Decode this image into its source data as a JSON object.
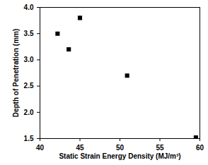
{
  "chart_data": {
    "type": "scatter",
    "x_label": "Static Strain Energy Density (MJ/m³)",
    "y_label": "Depth of Penetration (mm)",
    "x": [
      42.2,
      43.6,
      45.0,
      50.9,
      59.5
    ],
    "values": [
      3.5,
      3.2,
      3.8,
      2.7,
      1.52
    ],
    "color": "#000000",
    "marker": "square",
    "xlim": [
      40,
      60
    ],
    "xticks": [
      40,
      45,
      50,
      55,
      60
    ],
    "ylim": [
      1.5,
      4.0
    ],
    "yticks": [
      1.5,
      {
        "value": 2,
        "label": "2.0"
      },
      2.5,
      {
        "value": 3,
        "label": "3.0"
      },
      3.5,
      {
        "value": 4,
        "label": "4.0"
      }
    ],
    "grid": false
  }
}
